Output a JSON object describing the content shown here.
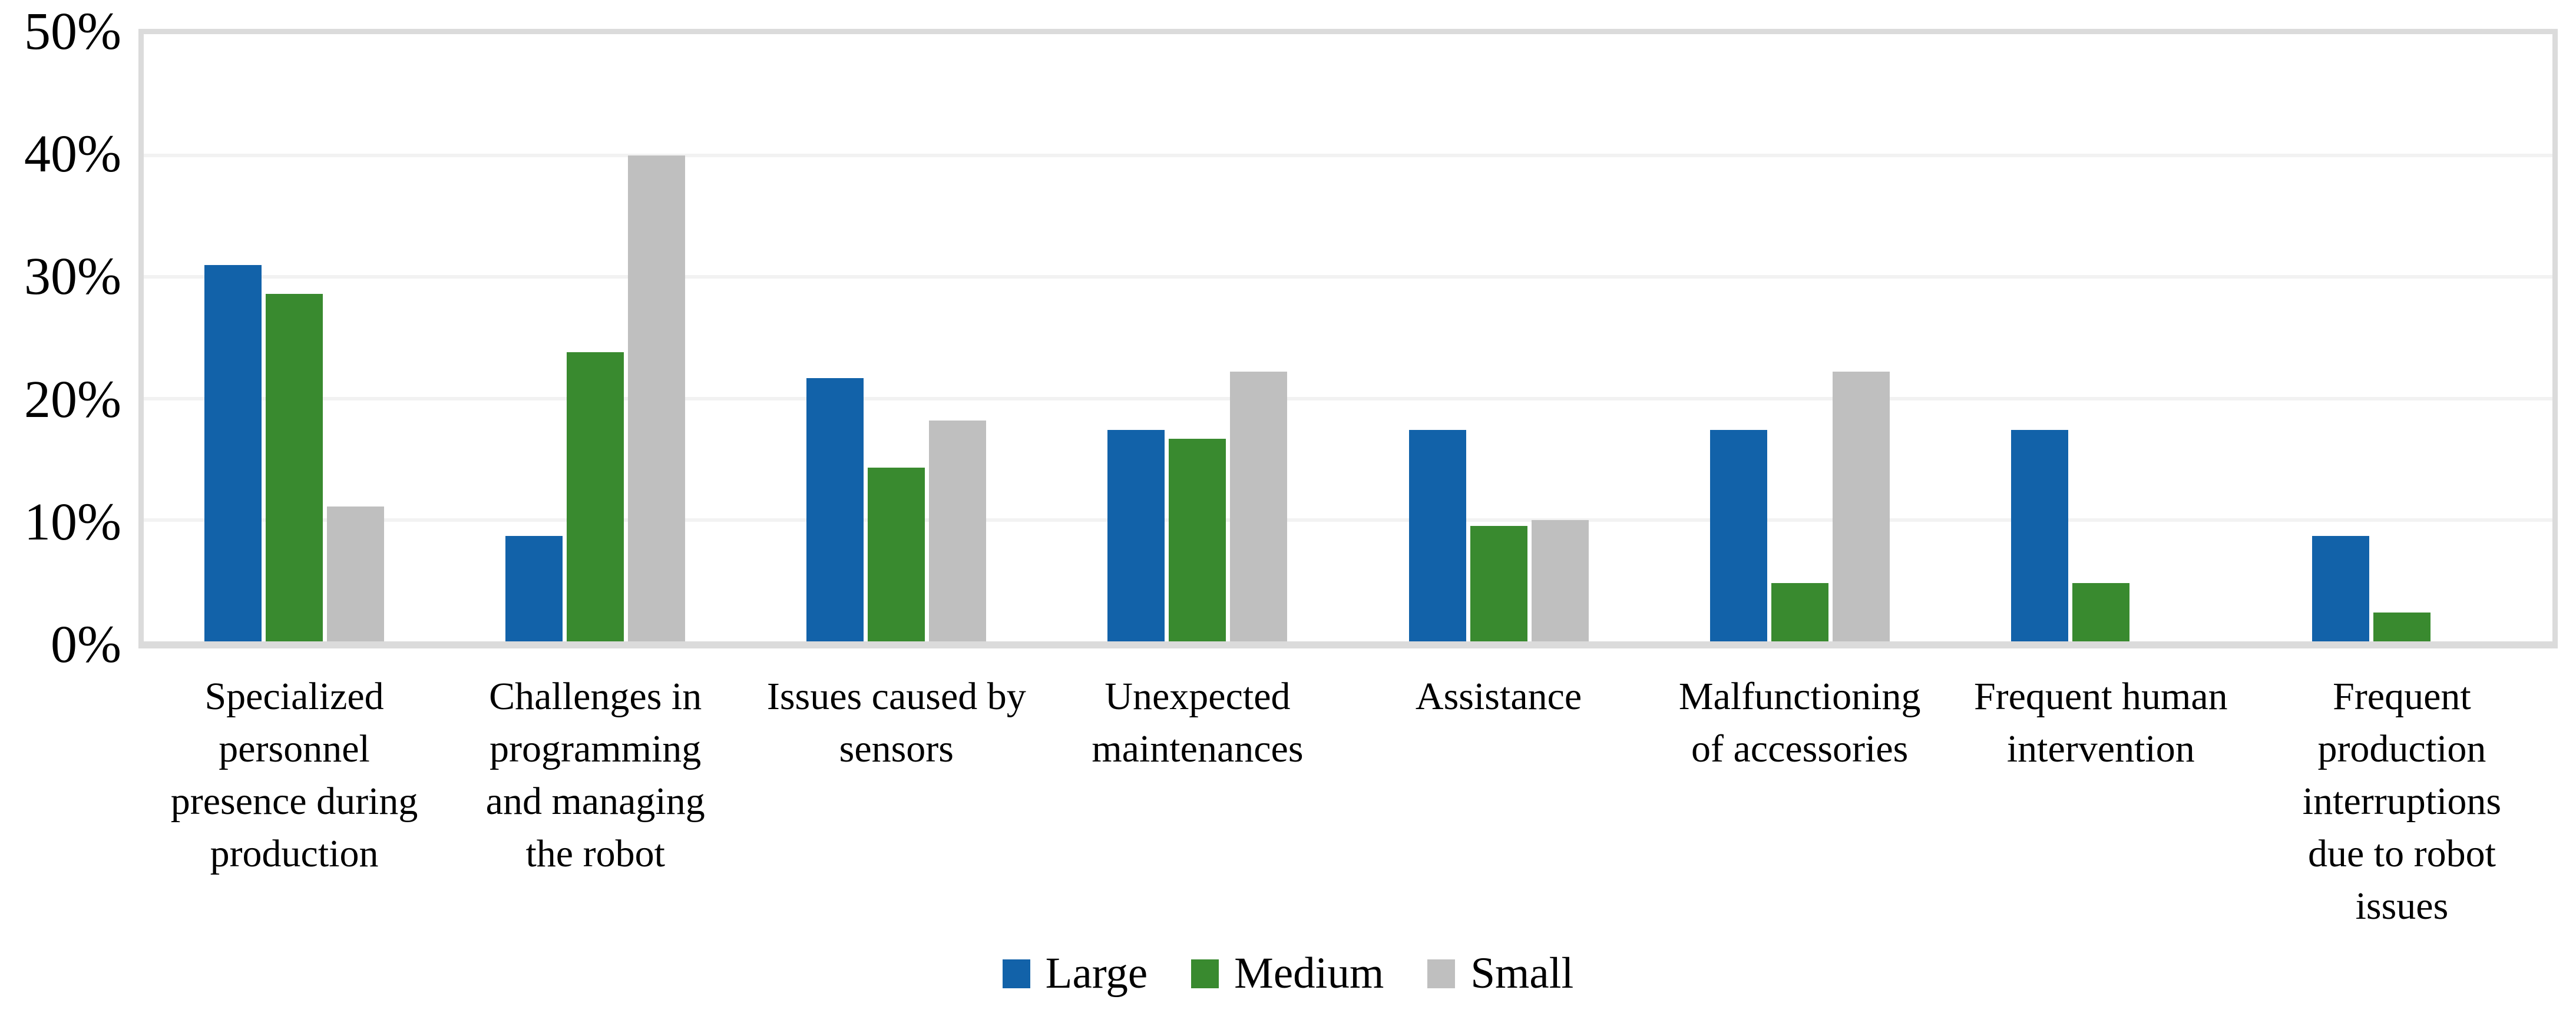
{
  "figure": {
    "background": "#ffffff",
    "text_color": "#000000"
  },
  "chart_data": {
    "type": "bar",
    "title": "",
    "xlabel": "",
    "ylabel": "",
    "categories": [
      "Specialized personnel presence during production",
      "Challenges in programming and managing the robot",
      "Issues caused by sensors",
      "Unexpected maintenances",
      "Assistance",
      "Malfunctioning of accessories",
      "Frequent human intervention",
      "Frequent production interruptions due to robot issues"
    ],
    "category_lines": [
      [
        "Specialized",
        "personnel",
        "presence during",
        "production"
      ],
      [
        "Challenges in",
        "programming",
        "and managing",
        "the robot"
      ],
      [
        "Issues caused by",
        "sensors"
      ],
      [
        "Unexpected",
        "maintenances"
      ],
      [
        "Assistance"
      ],
      [
        "Malfunctioning",
        "of accessories"
      ],
      [
        "Frequent human",
        "intervention"
      ],
      [
        "Frequent",
        "production",
        "interruptions",
        "due to robot",
        "issues"
      ]
    ],
    "series": [
      {
        "name": "Large",
        "color": "#1262a9",
        "values": [
          31.0,
          8.7,
          21.7,
          17.4,
          17.4,
          17.4,
          17.4,
          8.7
        ]
      },
      {
        "name": "Medium",
        "color": "#398a2f",
        "values": [
          28.6,
          23.8,
          14.3,
          16.7,
          9.5,
          4.8,
          4.8,
          2.4
        ]
      },
      {
        "name": "Small",
        "color": "#bfbfbf",
        "values": [
          11.1,
          40.0,
          18.2,
          22.2,
          10.0,
          22.2,
          0.0,
          0.0
        ]
      }
    ],
    "ylim": [
      0,
      50
    ],
    "yticks": [
      0,
      10,
      20,
      30,
      40,
      50
    ],
    "ytick_labels": [
      "0%",
      "10%",
      "20%",
      "30%",
      "40%",
      "50%"
    ],
    "grid": "horizontal",
    "gridline_color": "#f2f2f2",
    "plot_border_color": "#dbdbdb",
    "legend_position": "bottom"
  }
}
